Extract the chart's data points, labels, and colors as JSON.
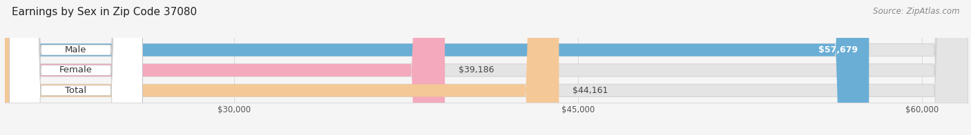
{
  "title": "Earnings by Sex in Zip Code 37080",
  "source": "Source: ZipAtlas.com",
  "categories": [
    "Male",
    "Female",
    "Total"
  ],
  "values": [
    57679,
    39186,
    44161
  ],
  "bar_colors": [
    "#6aaed6",
    "#f4a9bc",
    "#f5c897"
  ],
  "bar_bg_color": "#e4e4e4",
  "x_min": 20000,
  "x_max": 62000,
  "x_ticks": [
    30000,
    45000,
    60000
  ],
  "x_tick_labels": [
    "$30,000",
    "$45,000",
    "$60,000"
  ],
  "bar_height": 0.62,
  "fig_bg_color": "#f5f5f5",
  "title_fontsize": 11,
  "source_fontsize": 8.5,
  "label_fontsize": 9.5,
  "value_fontsize": 9
}
